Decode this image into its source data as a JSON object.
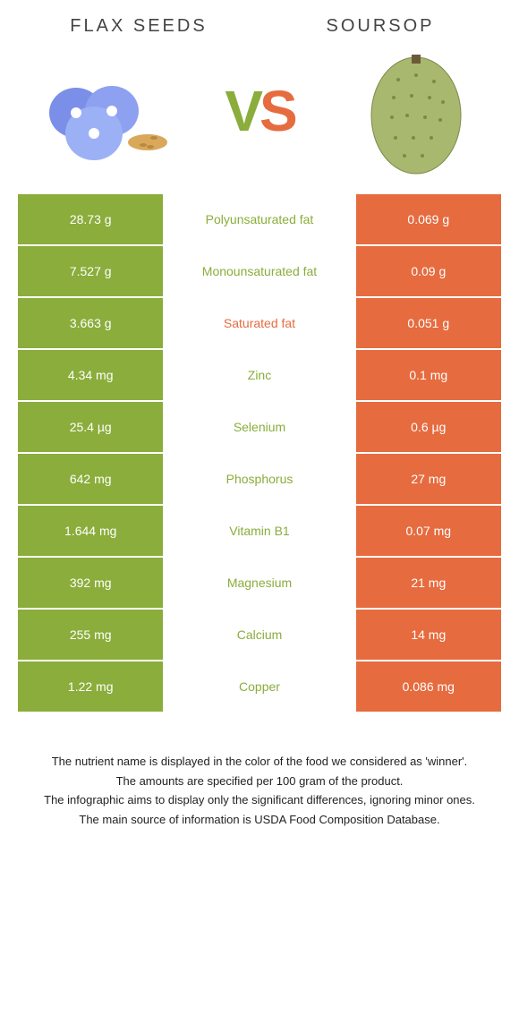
{
  "colors": {
    "green": "#8aad3b",
    "orange": "#e66b3f",
    "text": "#444"
  },
  "header": {
    "left": "FLAX SEEDS",
    "right": "SOURSOP",
    "vs_v": "V",
    "vs_s": "S"
  },
  "rows": [
    {
      "left": "28.73 g",
      "name": "Polyunsaturated fat",
      "right": "0.069 g",
      "winner": "green"
    },
    {
      "left": "7.527 g",
      "name": "Monounsaturated fat",
      "right": "0.09 g",
      "winner": "green"
    },
    {
      "left": "3.663 g",
      "name": "Saturated fat",
      "right": "0.051 g",
      "winner": "orange"
    },
    {
      "left": "4.34 mg",
      "name": "Zinc",
      "right": "0.1 mg",
      "winner": "green"
    },
    {
      "left": "25.4 µg",
      "name": "Selenium",
      "right": "0.6 µg",
      "winner": "green"
    },
    {
      "left": "642 mg",
      "name": "Phosphorus",
      "right": "27 mg",
      "winner": "green"
    },
    {
      "left": "1.644 mg",
      "name": "Vitamin B1",
      "right": "0.07 mg",
      "winner": "green"
    },
    {
      "left": "392 mg",
      "name": "Magnesium",
      "right": "21 mg",
      "winner": "green"
    },
    {
      "left": "255 mg",
      "name": "Calcium",
      "right": "14 mg",
      "winner": "green"
    },
    {
      "left": "1.22 mg",
      "name": "Copper",
      "right": "0.086 mg",
      "winner": "green"
    }
  ],
  "notes": [
    "The nutrient name is displayed in the color of the food we considered as 'winner'.",
    "The amounts are specified per 100 gram of the product.",
    "The infographic aims to display only the significant differences, ignoring minor ones.",
    "The main source of information is USDA Food Composition Database."
  ]
}
